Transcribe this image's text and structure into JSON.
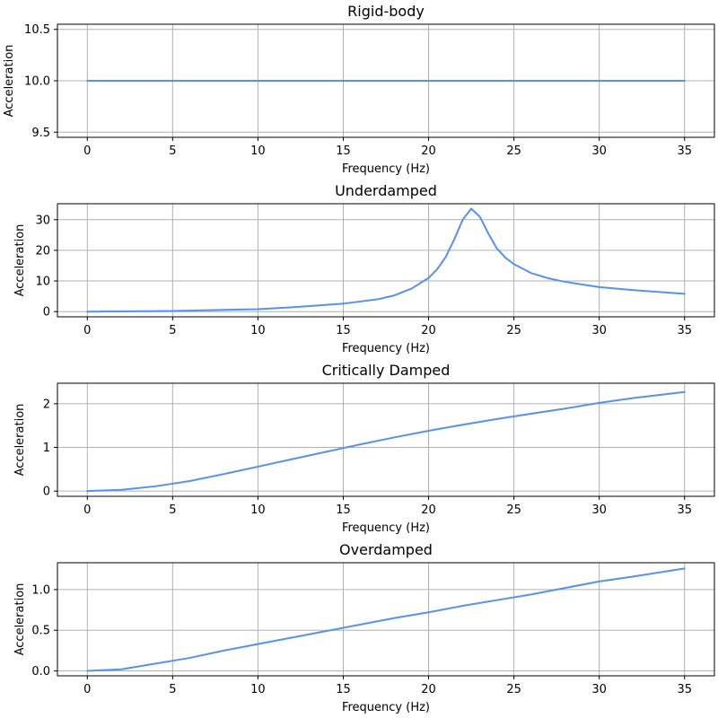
{
  "colors": {
    "series": "#5591f5",
    "grid": "#b0b0b0"
  },
  "chart_data": [
    {
      "type": "line",
      "title": "Rigid-body",
      "xlabel": "Frequency (Hz)",
      "ylabel": "Acceleration",
      "xlim": [
        -1.75,
        36.75
      ],
      "ylim": [
        9.45,
        10.55
      ],
      "xticks": [
        0,
        5,
        10,
        15,
        20,
        25,
        30,
        35
      ],
      "yticks": [
        9.5,
        10.0,
        10.5
      ],
      "ytick_labels": [
        "9.5",
        "10.0",
        "10.5"
      ],
      "grid": true,
      "x": [
        0,
        35
      ],
      "y": [
        10.0,
        10.0
      ]
    },
    {
      "type": "line",
      "title": "Underdamped",
      "xlabel": "Frequency (Hz)",
      "ylabel": "Acceleration",
      "xlim": [
        -1.75,
        36.75
      ],
      "ylim": [
        -1.7,
        35.2
      ],
      "xticks": [
        0,
        5,
        10,
        15,
        20,
        25,
        30,
        35
      ],
      "yticks": [
        0,
        10,
        20,
        30
      ],
      "ytick_labels": [
        "0",
        "10",
        "20",
        "30"
      ],
      "grid": true,
      "x": [
        0,
        5,
        10,
        12,
        15,
        17,
        18,
        19,
        20,
        20.5,
        21,
        21.5,
        22,
        22.5,
        23,
        23.5,
        24,
        24.5,
        25,
        26,
        27,
        28,
        30,
        32,
        35
      ],
      "y": [
        0,
        0.2,
        0.8,
        1.4,
        2.6,
        4.0,
        5.3,
        7.5,
        11.0,
        13.8,
        17.8,
        23.5,
        30.0,
        33.6,
        31.0,
        25.5,
        20.6,
        17.6,
        15.5,
        12.6,
        10.9,
        9.7,
        8.0,
        7.0,
        5.8
      ]
    },
    {
      "type": "line",
      "title": "Critically Damped",
      "xlabel": "Frequency (Hz)",
      "ylabel": "Acceleration",
      "xlim": [
        -1.75,
        36.75
      ],
      "ylim": [
        -0.12,
        2.47
      ],
      "xticks": [
        0,
        5,
        10,
        15,
        20,
        25,
        30,
        35
      ],
      "yticks": [
        0,
        1,
        2
      ],
      "ytick_labels": [
        "0",
        "1",
        "2"
      ],
      "grid": true,
      "x": [
        0,
        2,
        4,
        6,
        8,
        10,
        12,
        14,
        16,
        18,
        20,
        22,
        24,
        26,
        28,
        30,
        32,
        35
      ],
      "y": [
        0,
        0.03,
        0.11,
        0.23,
        0.39,
        0.56,
        0.73,
        0.9,
        1.07,
        1.23,
        1.38,
        1.52,
        1.65,
        1.77,
        1.89,
        2.02,
        2.13,
        2.27
      ]
    },
    {
      "type": "line",
      "title": "Overdamped",
      "xlabel": "Frequency (Hz)",
      "ylabel": "Acceleration",
      "xlim": [
        -1.75,
        36.75
      ],
      "ylim": [
        -0.06,
        1.33
      ],
      "xticks": [
        0,
        5,
        10,
        15,
        20,
        25,
        30,
        35
      ],
      "yticks": [
        0,
        0.5,
        1.0
      ],
      "ytick_labels": [
        "0.0",
        "0.5",
        "1.0"
      ],
      "grid": true,
      "x": [
        0,
        2,
        4,
        6,
        8,
        10,
        12,
        14,
        16,
        18,
        20,
        22,
        24,
        26,
        28,
        30,
        32,
        35
      ],
      "y": [
        0,
        0.02,
        0.09,
        0.16,
        0.25,
        0.33,
        0.41,
        0.49,
        0.57,
        0.65,
        0.72,
        0.8,
        0.87,
        0.94,
        1.02,
        1.1,
        1.16,
        1.26
      ]
    }
  ]
}
